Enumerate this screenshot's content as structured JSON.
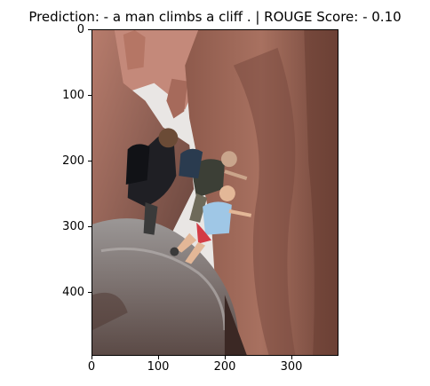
{
  "figure": {
    "title": "Prediction: - a man climbs a cliff . | ROUGE Score: - 0.10",
    "image_description": "photo: people climbing inside a narrow red sandstone slot canyon",
    "x_ticks": [
      "0",
      "100",
      "200",
      "300"
    ],
    "y_ticks": [
      "0",
      "100",
      "200",
      "300",
      "400"
    ]
  },
  "colors": {
    "rock_light": "#c98a76",
    "rock_dark": "#7d4a3d",
    "sky": "#e9e6e4",
    "shadow": "#4d3530"
  }
}
